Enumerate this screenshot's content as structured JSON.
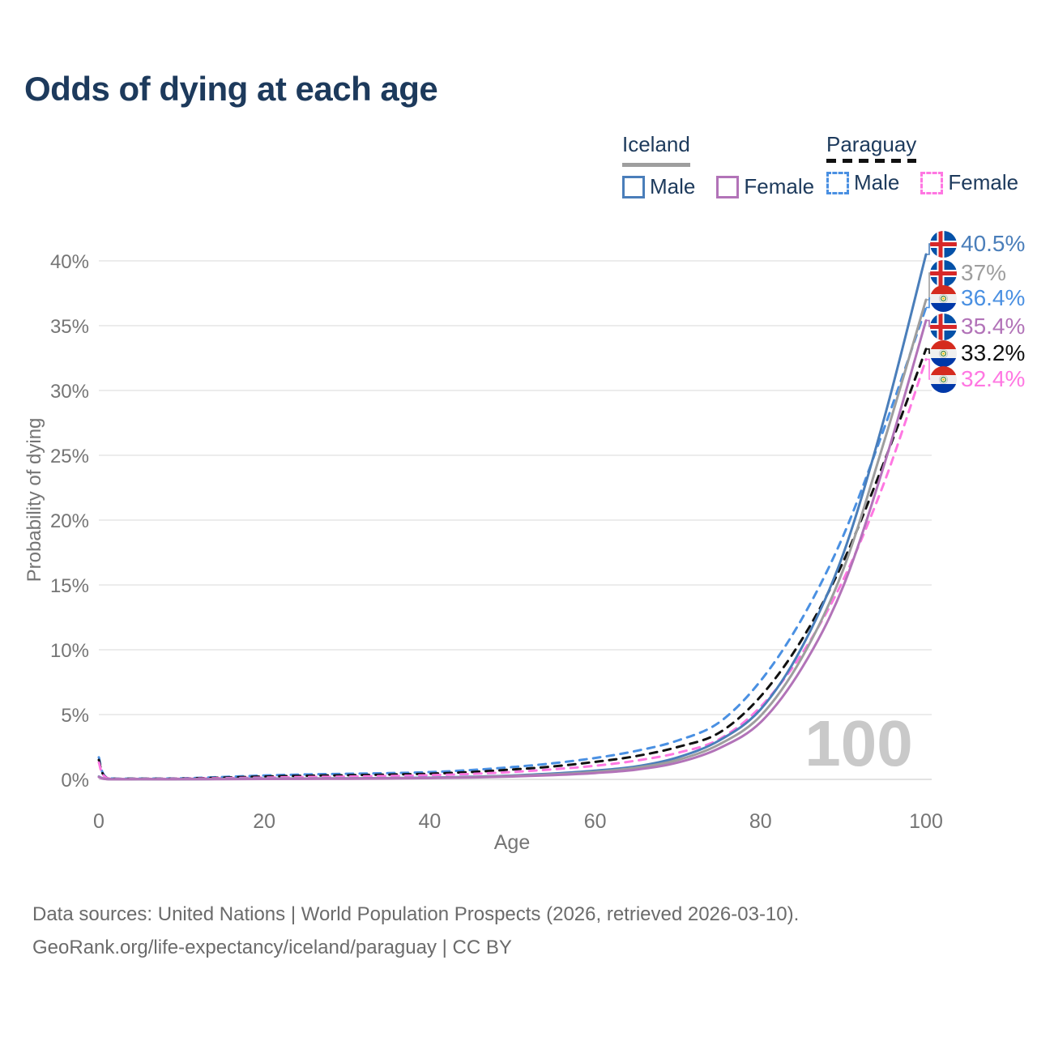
{
  "title": "Odds of dying at each age",
  "legend": {
    "groups": [
      {
        "country": "Iceland",
        "style": "solid",
        "underline_color": "#9e9e9e",
        "items": [
          {
            "label": "Male",
            "color": "#4a7eba"
          },
          {
            "label": "Female",
            "color": "#b273b8"
          }
        ]
      },
      {
        "country": "Paraguay",
        "style": "dashed",
        "underline_color": "#111111",
        "items": [
          {
            "label": "Male",
            "color": "#4a90e2"
          },
          {
            "label": "Female",
            "color": "#ff77e2"
          }
        ]
      }
    ]
  },
  "chart_data": {
    "type": "line",
    "title": "Odds of dying at each age",
    "xlabel": "Age",
    "ylabel": "Probability of dying",
    "xlim": [
      0,
      100
    ],
    "ylim_percent": [
      0,
      40
    ],
    "grid": "horizontal",
    "legend_position": "top-right",
    "hover_age_watermark": "100",
    "xticks": [
      "0",
      "20",
      "40",
      "60",
      "80",
      "100"
    ],
    "yticks": [
      "0%",
      "5%",
      "10%",
      "15%",
      "20%",
      "25%",
      "30%",
      "35%",
      "40%"
    ],
    "x": [
      0,
      1,
      5,
      10,
      15,
      20,
      25,
      30,
      35,
      40,
      45,
      50,
      55,
      60,
      65,
      70,
      75,
      80,
      85,
      90,
      95,
      100
    ],
    "series": [
      {
        "name": "Iceland Male",
        "country": "Iceland",
        "sex": "Male",
        "flag": "iceland",
        "color": "#4a7eba",
        "dashed": false,
        "end_label": "40.5%",
        "values": [
          0.22,
          0.03,
          0.01,
          0.01,
          0.04,
          0.06,
          0.07,
          0.08,
          0.1,
          0.13,
          0.2,
          0.3,
          0.45,
          0.67,
          1.0,
          1.7,
          3.0,
          5.4,
          10.2,
          17.4,
          28.0,
          40.5
        ]
      },
      {
        "name": "Iceland",
        "country": "Iceland",
        "sex": "Both",
        "flag": "iceland",
        "color": "#9e9e9e",
        "dashed": false,
        "end_label": "37%",
        "values": [
          0.2,
          0.02,
          0.01,
          0.01,
          0.03,
          0.05,
          0.06,
          0.07,
          0.09,
          0.11,
          0.17,
          0.26,
          0.39,
          0.58,
          0.9,
          1.5,
          2.7,
          4.9,
          9.4,
          16.2,
          26.2,
          37.0
        ]
      },
      {
        "name": "Paraguay Male",
        "country": "Paraguay",
        "sex": "Male",
        "flag": "paraguay",
        "color": "#4a90e2",
        "dashed": true,
        "end_label": "36.4%",
        "values": [
          1.7,
          0.12,
          0.06,
          0.08,
          0.18,
          0.3,
          0.38,
          0.43,
          0.48,
          0.56,
          0.72,
          0.95,
          1.25,
          1.65,
          2.2,
          3.0,
          4.4,
          7.6,
          12.4,
          18.8,
          27.2,
          36.4
        ]
      },
      {
        "name": "Iceland Female",
        "country": "Iceland",
        "sex": "Female",
        "flag": "iceland",
        "color": "#b273b8",
        "dashed": false,
        "end_label": "35.4%",
        "values": [
          0.18,
          0.02,
          0.01,
          0.01,
          0.02,
          0.03,
          0.04,
          0.05,
          0.07,
          0.1,
          0.14,
          0.22,
          0.33,
          0.49,
          0.75,
          1.3,
          2.4,
          4.4,
          8.6,
          14.9,
          24.4,
          35.4
        ]
      },
      {
        "name": "Paraguay",
        "country": "Paraguay",
        "sex": "Both",
        "flag": "paraguay",
        "color": "#111111",
        "dashed": true,
        "end_label": "33.2%",
        "values": [
          1.5,
          0.1,
          0.05,
          0.06,
          0.13,
          0.22,
          0.28,
          0.32,
          0.37,
          0.44,
          0.57,
          0.76,
          1.0,
          1.35,
          1.8,
          2.5,
          3.6,
          6.4,
          10.8,
          16.8,
          24.6,
          33.2
        ]
      },
      {
        "name": "Paraguay Female",
        "country": "Paraguay",
        "sex": "Female",
        "flag": "paraguay",
        "color": "#ff77e2",
        "dashed": true,
        "end_label": "32.4%",
        "values": [
          1.3,
          0.09,
          0.04,
          0.05,
          0.09,
          0.14,
          0.18,
          0.21,
          0.26,
          0.32,
          0.42,
          0.57,
          0.78,
          1.05,
          1.45,
          2.05,
          3.1,
          5.6,
          9.7,
          15.4,
          23.0,
          32.4
        ]
      }
    ]
  },
  "footer": {
    "line1": "Data sources: United Nations | World Population Prospects (2026, retrieved 2026-03-10).",
    "line2": "GeoRank.org/life-expectancy/iceland/paraguay | CC BY"
  }
}
